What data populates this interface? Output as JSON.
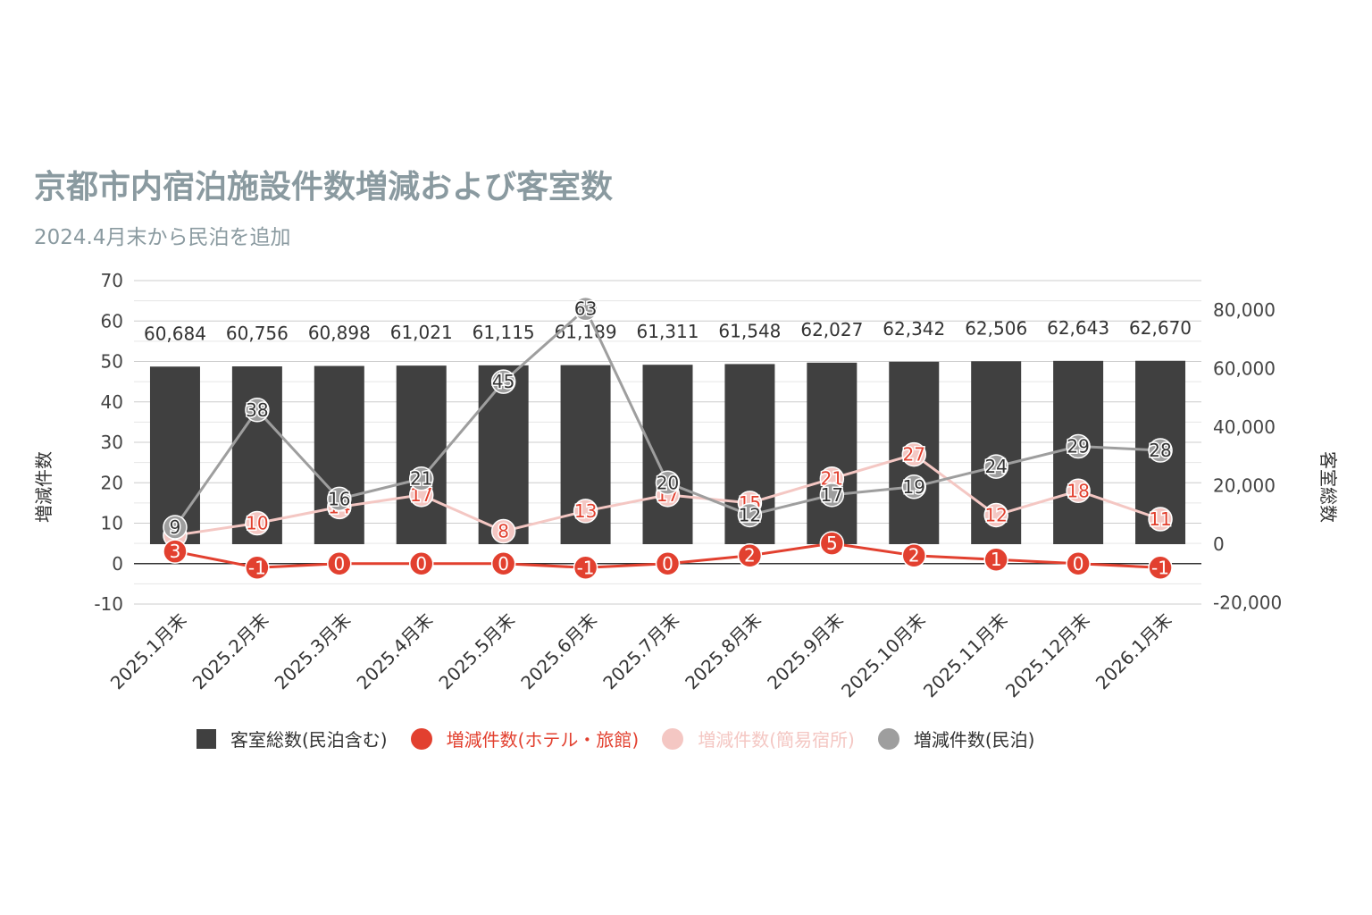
{
  "chart_data": {
    "type": "bar",
    "title": "京都市内宿泊施設件数増減および客室数",
    "subtitle": "2024.4月末から民泊を追加",
    "categories": [
      "2025.1月末",
      "2025.2月末",
      "2025.3月末",
      "2025.4月末",
      "2025.5月末",
      "2025.6月末",
      "2025.7月末",
      "2025.8月末",
      "2025.9月末",
      "2025.10月末",
      "2025.11月末",
      "2025.12月末",
      "2026.1月末"
    ],
    "y_left": {
      "label": "増減件数",
      "min": -10,
      "max": 70,
      "ticks": [
        -10,
        0,
        10,
        20,
        30,
        40,
        50,
        60,
        70
      ]
    },
    "y_right": {
      "label": "客室総数",
      "min": -20000,
      "max": 80000,
      "tick_values": [
        -20000,
        0,
        20000,
        40000,
        60000,
        80000
      ],
      "tick_labels": [
        "-20,000",
        "0",
        "20,000",
        "40,000",
        "60,000",
        "80,000"
      ]
    },
    "series": [
      {
        "name": "客室総数(民泊含む)",
        "type": "bar",
        "axis": "right",
        "color": "#404040",
        "values": [
          60684,
          60756,
          60898,
          61021,
          61115,
          61189,
          61311,
          61548,
          62027,
          62342,
          62506,
          62643,
          62670
        ],
        "labels": [
          "60,684",
          "60,756",
          "60,898",
          "61,021",
          "61,115",
          "61,189",
          "61,311",
          "61,548",
          "62,027",
          "62,342",
          "62,506",
          "62,643",
          "62,670"
        ]
      },
      {
        "name": "増減件数(ホテル・旅館)",
        "type": "line",
        "axis": "left",
        "color": "#e2402f",
        "values": [
          3,
          -1,
          0,
          0,
          0,
          -1,
          0,
          2,
          5,
          2,
          1,
          0,
          -1
        ]
      },
      {
        "name": "増減件数(簡易宿所)",
        "type": "line",
        "axis": "left",
        "color": "#f4c7c3",
        "values": [
          7,
          10,
          14,
          17,
          8,
          13,
          17,
          15,
          21,
          27,
          12,
          18,
          11
        ]
      },
      {
        "name": "増減件数(民泊)",
        "type": "line",
        "axis": "left",
        "color": "#9e9e9e",
        "values": [
          9,
          38,
          16,
          21,
          45,
          63,
          20,
          12,
          17,
          19,
          24,
          29,
          28
        ]
      }
    ],
    "legend_position": "bottom",
    "grid": true
  }
}
